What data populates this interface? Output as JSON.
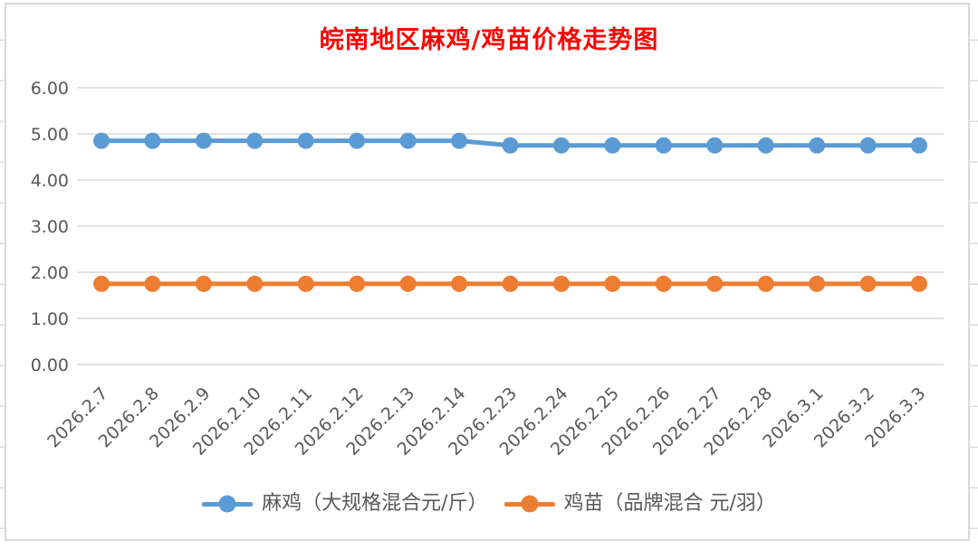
{
  "page": {
    "background": "#FFFFFF"
  },
  "chart_data": {
    "type": "line",
    "title": "皖南地区麻鸡/鸡苗价格走势图",
    "title_color": "#FF0000",
    "categories": [
      "2026.2.7",
      "2026.2.8",
      "2026.2.9",
      "2026.2.10",
      "2026.2.11",
      "2026.2.12",
      "2026.2.13",
      "2026.2.14",
      "2026.2.23",
      "2026.2.24",
      "2026.2.25",
      "2026.2.26",
      "2026.2.27",
      "2026.2.28",
      "2026.3.1",
      "2026.3.2",
      "2026.3.3"
    ],
    "series": [
      {
        "name": "麻鸡（大规格混合元/斤）",
        "color": "#5B9BD5",
        "values": [
          4.85,
          4.85,
          4.85,
          4.85,
          4.85,
          4.85,
          4.85,
          4.85,
          4.75,
          4.75,
          4.75,
          4.75,
          4.75,
          4.75,
          4.75,
          4.75,
          4.75
        ]
      },
      {
        "name": "鸡苗（品牌混合 元/羽）",
        "color": "#ED7D31",
        "values": [
          1.75,
          1.75,
          1.75,
          1.75,
          1.75,
          1.75,
          1.75,
          1.75,
          1.75,
          1.75,
          1.75,
          1.75,
          1.75,
          1.75,
          1.75,
          1.75,
          1.75
        ]
      }
    ],
    "xlabel": "",
    "ylabel": "",
    "ylim": [
      0,
      6
    ],
    "ytick_step": 1,
    "ytick_labels": [
      "0.00",
      "1.00",
      "2.00",
      "3.00",
      "4.00",
      "5.00",
      "6.00"
    ],
    "grid": true,
    "gridline_color": "#D9D9D9",
    "axis_text_color": "#595959",
    "legend_position": "bottom",
    "marker_style": "filled-circle",
    "line_width": 5,
    "marker_radius": 9
  }
}
